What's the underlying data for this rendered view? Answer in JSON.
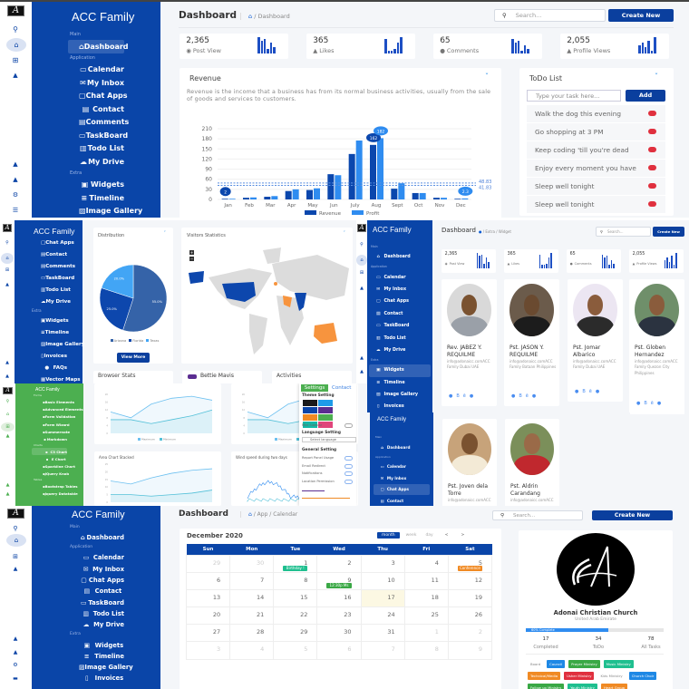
{
  "brand": "ACC Family",
  "colors": {
    "sidebar": "#0a45a8",
    "sidebar_green": "#4caf50",
    "primary_button": "#0a3f9e",
    "revenue": "#0b47ad",
    "profit": "#2f8cf0",
    "delete": "#e0303e",
    "today": "#fcf8e3"
  },
  "header": {
    "title": "Dashboard",
    "search_placeholder": "Search...",
    "create_label": "Create New"
  },
  "breadcrumbs": {
    "dashboard": [
      "Dashboard"
    ],
    "widget": [
      "Extra",
      "Widget"
    ],
    "calendar": [
      "App",
      "Calendar"
    ]
  },
  "stats": [
    {
      "value": "2,365",
      "label": "Post View",
      "icon": "eye-icon"
    },
    {
      "value": "365",
      "label": "Likes",
      "icon": "thumbs-up-icon"
    },
    {
      "value": "65",
      "label": "Comments",
      "icon": "comments-icon"
    },
    {
      "value": "2,055",
      "label": "Profile Views",
      "icon": "user-icon"
    }
  ],
  "sidebars": {
    "top": {
      "active": "Dashboard",
      "sections": [
        {
          "label": "Main",
          "items": [
            "Dashboard"
          ]
        },
        {
          "label": "Application",
          "items": [
            "Calendar",
            "My Inbox",
            "Chat Apps",
            "Contact",
            "Comments",
            "TaskBoard",
            "Todo List",
            "My Drive"
          ]
        },
        {
          "label": "Extra",
          "items": [
            "Widgets",
            "Timeline",
            "Image Gallery"
          ]
        }
      ]
    },
    "mid_left": {
      "active": "",
      "sections": [
        {
          "label": "",
          "items": [
            "Chat Apps",
            "Contact",
            "Comments",
            "TaskBoard",
            "Todo List",
            "My Drive"
          ]
        },
        {
          "label": "Extra",
          "items": [
            "Widgets",
            "Timeline",
            "Image Gallery",
            "Invoices",
            "FAQs",
            "Vector Maps"
          ]
        }
      ]
    },
    "mid_right": {
      "active": "Widgets",
      "sections": [
        {
          "label": "Main",
          "items": [
            "Dashboard"
          ]
        },
        {
          "label": "Application",
          "items": [
            "Calendar",
            "My Inbox",
            "Chat Apps",
            "Contact",
            "TaskBoard",
            "Todo List",
            "My Drive"
          ]
        },
        {
          "label": "Extra",
          "items": [
            "Widgets",
            "Timeline",
            "Image Gallery",
            "Invoices"
          ]
        }
      ]
    },
    "lower_right": {
      "active": "Chat Apps",
      "sections": [
        {
          "label": "Main",
          "items": [
            "Dashboard"
          ]
        },
        {
          "label": "Application",
          "items": [
            "Calendar",
            "My Inbox",
            "Chat Apps",
            "Contact"
          ]
        }
      ]
    },
    "green": {
      "active": "C3 Chart",
      "sections": [
        {
          "label": "Forms",
          "items": [
            "Basic Elements",
            "Advanced Elements",
            "Form Validation",
            "Form Wizard",
            "Summernote",
            "Markdown"
          ]
        },
        {
          "label": "Charts",
          "items": [
            "C3 Chart",
            "E Chart",
            "Sparkline Chart",
            "JQuery Knob"
          ]
        },
        {
          "label": "Tables",
          "items": [
            "Bootstrap Tables",
            "Jquery Datatable"
          ]
        }
      ]
    },
    "bottom": {
      "active": "",
      "sections": [
        {
          "label": "Main",
          "items": [
            "Dashboard"
          ]
        },
        {
          "label": "Application",
          "items": [
            "Calendar",
            "My Inbox",
            "Chat Apps",
            "Contact",
            "TaskBoard",
            "Todo List",
            "My Drive"
          ]
        },
        {
          "label": "Extra",
          "items": [
            "Widgets",
            "Timeline",
            "Image Gallery",
            "Invoices"
          ]
        }
      ]
    }
  },
  "revenue": {
    "title": "Revenue",
    "description": "Revenue is the income that a business has from its normal business activities, usually from the sale of goods and services to customers."
  },
  "todo": {
    "title": "ToDo List",
    "input_placeholder": "Type your task here...",
    "add_label": "Add",
    "items": [
      "Walk the dog this evening",
      "Go shopping at 3 PM",
      "Keep coding 'till you're dead",
      "Enjoy every moment you have",
      "Sleep well tonight",
      "Sleep well tonight"
    ]
  },
  "chart_data": [
    {
      "type": "bar",
      "categories": [
        "Jan",
        "Feb",
        "Mar",
        "Apr",
        "May",
        "Jun",
        "July",
        "Aug",
        "Sept",
        "Oct",
        "Nov",
        "Dec"
      ],
      "series": [
        {
          "name": "Revenue",
          "values": [
            2,
            5,
            8,
            25,
            28,
            75,
            135,
            162,
            32,
            19,
            5,
            2
          ]
        },
        {
          "name": "Profit",
          "values": [
            2,
            6,
            10,
            30,
            33,
            72,
            175,
            182,
            48,
            19,
            5,
            3
          ]
        }
      ],
      "yticks": [
        0,
        30,
        60,
        90,
        120,
        150,
        180,
        210
      ],
      "ylim": [
        0,
        210
      ],
      "markers": [
        {
          "label": "2",
          "x": "Jan"
        },
        {
          "label": "162",
          "x": "Aug"
        },
        {
          "label": "182",
          "x": "Aug"
        },
        {
          "label": "2.3",
          "x": "Dec"
        }
      ],
      "reference_lines": [
        {
          "label": "48.83",
          "value": 48.83
        },
        {
          "label": "41.83",
          "value": 41.83
        }
      ],
      "legend": "bottom"
    },
    {
      "type": "pie",
      "title": "Distribution",
      "slices": [
        {
          "name": "Arizona",
          "value": 55.0,
          "color": "#3563a8"
        },
        {
          "name": "Florida",
          "value": 25.0,
          "color": "#0d47ad"
        },
        {
          "name": "Texas",
          "value": 20.0,
          "color": "#42a5f5"
        }
      ],
      "legend": "bottom"
    },
    {
      "type": "area",
      "title": "Browser Stats",
      "categories": [
        "Jan",
        "Feb",
        "Mar",
        "Apr",
        "May",
        "Jun"
      ],
      "series": [
        {
          "name": "Maximum",
          "values": [
            11,
            8,
            15,
            18,
            19,
            17
          ]
        },
        {
          "name": "Minimum",
          "values": [
            7,
            7,
            5,
            7,
            9,
            12
          ]
        }
      ],
      "ylim": [
        0,
        20
      ],
      "legend": "bottom"
    },
    {
      "type": "area",
      "title": "Area Chart Stacked",
      "categories": [
        "Jan",
        "Feb",
        "Mar",
        "Apr",
        "May",
        "Jun"
      ],
      "series": [
        {
          "values": [
            14,
            12,
            16,
            19,
            21,
            22
          ]
        },
        {
          "values": [
            5,
            5,
            4,
            5,
            6,
            8
          ]
        }
      ],
      "ylim": [
        0,
        25
      ]
    }
  ],
  "distribution": {
    "title": "Distribution",
    "button": "View More"
  },
  "visitors": {
    "title": "Visitors Statistics",
    "zoom_in": "+",
    "zoom_out": "−",
    "land_color": "#dcdcdc",
    "high_color": "#0d47ad",
    "mid_color": "#f7943e"
  },
  "lower_cards": {
    "browser_stats": "Browser Stats",
    "contact_name": "Bettie Mavis",
    "activities": "Activities",
    "area_stacked": "Area Chart Stacked",
    "wind_speed": "Wind speed during two days"
  },
  "settings": {
    "tabs": [
      "Settings",
      "Contact"
    ],
    "theme_title": "Theme Setting",
    "theme_colors": [
      "#1a1a1a",
      "#1e9be9",
      "#0a45a8",
      "#5b2d91",
      "#f08a24",
      "#4caf50",
      "#14b8a6",
      "#e0457b"
    ],
    "mini_sidebar": "Mini Sidebar",
    "language_title": "Language Setting",
    "language_select": "Select language",
    "general_title": "General Setting",
    "options": [
      "Report Panel Usage",
      "Email Redirect",
      "Notifications",
      "Location Permission"
    ]
  },
  "profiles": [
    {
      "name": "Rev. JABEZ Y. REQUILME",
      "email": "info@adonaicc.comACC",
      "location": "Family Dubai UAE"
    },
    {
      "name": "Pst. JASON Y. REQUILME",
      "email": "info@adonaicc.comACC",
      "location": "Family Bataan Philippines"
    },
    {
      "name": "Pst. Jomar Albarico",
      "email": "info@adonaicc.comACC",
      "location": "Family Dubai UAE"
    },
    {
      "name": "Pst. Globen Hernandez",
      "email": "info@adonaicc.comACC",
      "location": "Family Quezon City Philippines"
    },
    {
      "name": "Pst. Joven dela Torre",
      "email": "info@adonaicc.comACC",
      "location": ""
    },
    {
      "name": "Pst. Aldrin Carandang",
      "email": "info@adonaicc.comACC",
      "location": ""
    }
  ],
  "calendar": {
    "title": "December 2020",
    "views": [
      "month",
      "week",
      "day"
    ],
    "active_view": "month",
    "prev": "<",
    "next": ">",
    "weekdays": [
      "Sun",
      "Mon",
      "Tue",
      "Wed",
      "Thu",
      "Fri",
      "Sat"
    ],
    "weeks": [
      [
        29,
        30,
        1,
        2,
        3,
        4,
        5
      ],
      [
        6,
        7,
        8,
        9,
        10,
        11,
        12
      ],
      [
        13,
        14,
        15,
        16,
        17,
        18,
        19
      ],
      [
        20,
        21,
        22,
        23,
        24,
        25,
        26
      ],
      [
        27,
        28,
        29,
        30,
        31,
        1,
        2
      ],
      [
        3,
        4,
        5,
        6,
        7,
        8,
        9
      ]
    ],
    "today": 17,
    "events": [
      {
        "title": "Birthday !",
        "week": 0,
        "day": 2,
        "color": "#1fbf8f"
      },
      {
        "title": "Conference",
        "week": 0,
        "day": 6,
        "color": "#f08a24"
      },
      {
        "title": "12:30p Ms",
        "week": 1,
        "day": 3,
        "color": "#3aa845"
      }
    ]
  },
  "church": {
    "name": "Adonai Christian Church",
    "location": "United Arab Emirate",
    "progress_label": "60% Complete",
    "progress_percent": 60,
    "counts": [
      {
        "value": "17",
        "label": "Completed"
      },
      {
        "value": "34",
        "label": "ToDo"
      },
      {
        "value": "78",
        "label": "All Tasks"
      }
    ],
    "tags": [
      {
        "text": "Board",
        "color": ""
      },
      {
        "text": "Council",
        "color": "#1e88e5"
      },
      {
        "text": "Prayer Ministry",
        "color": "#3aa845"
      },
      {
        "text": "Music Ministry",
        "color": "#1fbf8f"
      },
      {
        "text": "Technical/Media",
        "color": "#f08a24"
      },
      {
        "text": "Usher Ministry",
        "color": "#e0303e"
      },
      {
        "text": "Kids Ministry",
        "color": ""
      },
      {
        "text": "Church Choir",
        "color": "#1e88e5"
      },
      {
        "text": "Follow up Ministry",
        "color": "#3aa845"
      },
      {
        "text": "Youth Ministry",
        "color": "#1fbf8f"
      },
      {
        "text": "Heart Group",
        "color": "#f08a24"
      }
    ]
  }
}
